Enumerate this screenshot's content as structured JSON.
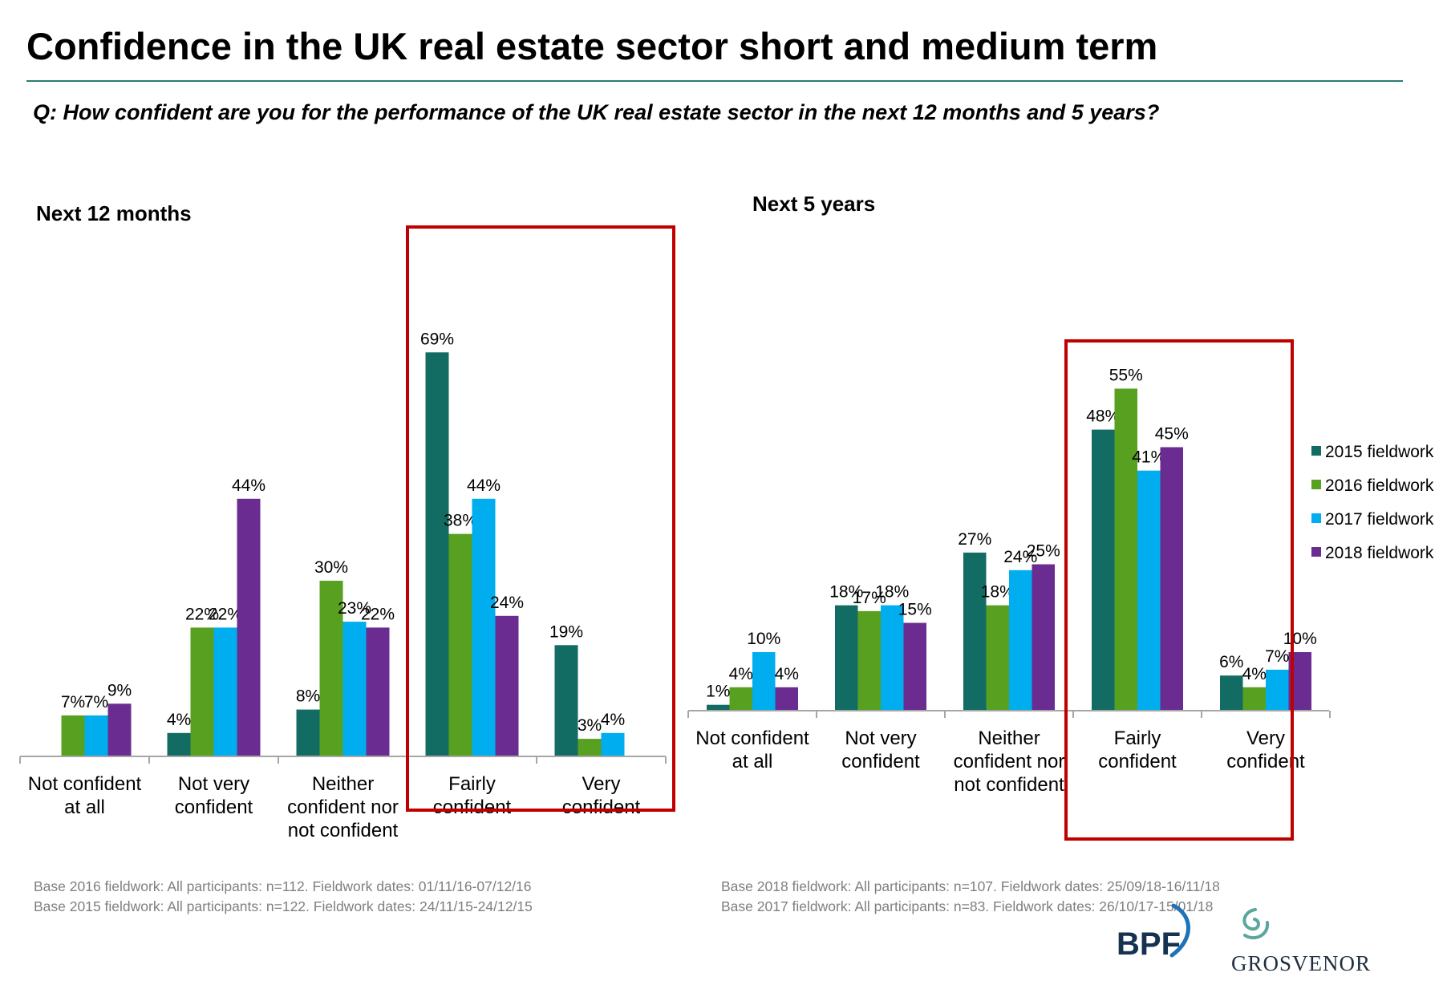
{
  "slide": {
    "title": "Confidence in the UK real estate sector short and medium term",
    "question": "Q: How confident are you for the performance of the UK real estate sector in the next 12 months and 5 years?",
    "notes_left": [
      "Base 2016 fieldwork: All participants: n=112. Fieldwork dates: 01/11/16-07/12/16",
      "Base 2015 fieldwork: All participants: n=122. Fieldwork dates: 24/11/15-24/12/15"
    ],
    "notes_right": [
      "Base 2018 fieldwork: All participants: n=107. Fieldwork dates: 25/09/18-16/11/18",
      "Base 2017 fieldwork: All participants: n=83. Fieldwork dates: 26/10/17-15/01/18"
    ],
    "logos": {
      "bpf": "BPF",
      "grosvenor": "GROSVENOR"
    },
    "highlight_color": "#c00000"
  },
  "chart_data": [
    {
      "type": "bar",
      "title": "Next 12 months",
      "categories": [
        "Not confident at all",
        "Not very confident",
        "Neither confident nor not confident",
        "Fairly confident",
        "Very confident"
      ],
      "series": [
        {
          "name": "2015 fieldwork",
          "color": "#136c63",
          "values": [
            null,
            4,
            8,
            69,
            19
          ]
        },
        {
          "name": "2016 fieldwork",
          "color": "#58a01f",
          "values": [
            7,
            22,
            30,
            38,
            3
          ]
        },
        {
          "name": "2017 fieldwork",
          "color": "#00aeef",
          "values": [
            7,
            22,
            23,
            44,
            4
          ]
        },
        {
          "name": "2018 fieldwork",
          "color": "#6b2c91",
          "values": [
            9,
            44,
            22,
            24,
            null
          ]
        }
      ],
      "value_suffix": "%",
      "highlighted_categories": [
        "Fairly confident",
        "Very confident"
      ],
      "legend": false,
      "grid": false
    },
    {
      "type": "bar",
      "title": "Next 5 years",
      "categories": [
        "Not confident at all",
        "Not very confident",
        "Neither confident nor not confident",
        "Fairly confident",
        "Very confident"
      ],
      "series": [
        {
          "name": "2015 fieldwork",
          "color": "#136c63",
          "values": [
            1,
            18,
            27,
            48,
            6
          ]
        },
        {
          "name": "2016 fieldwork",
          "color": "#58a01f",
          "values": [
            4,
            17,
            18,
            55,
            4
          ]
        },
        {
          "name": "2017 fieldwork",
          "color": "#00aeef",
          "values": [
            10,
            18,
            24,
            41,
            7
          ]
        },
        {
          "name": "2018 fieldwork",
          "color": "#6b2c91",
          "values": [
            4,
            15,
            25,
            45,
            10
          ]
        }
      ],
      "value_suffix": "%",
      "highlighted_categories": [
        "Fairly confident"
      ],
      "legend": true,
      "legend_position": "right",
      "grid": false
    }
  ]
}
